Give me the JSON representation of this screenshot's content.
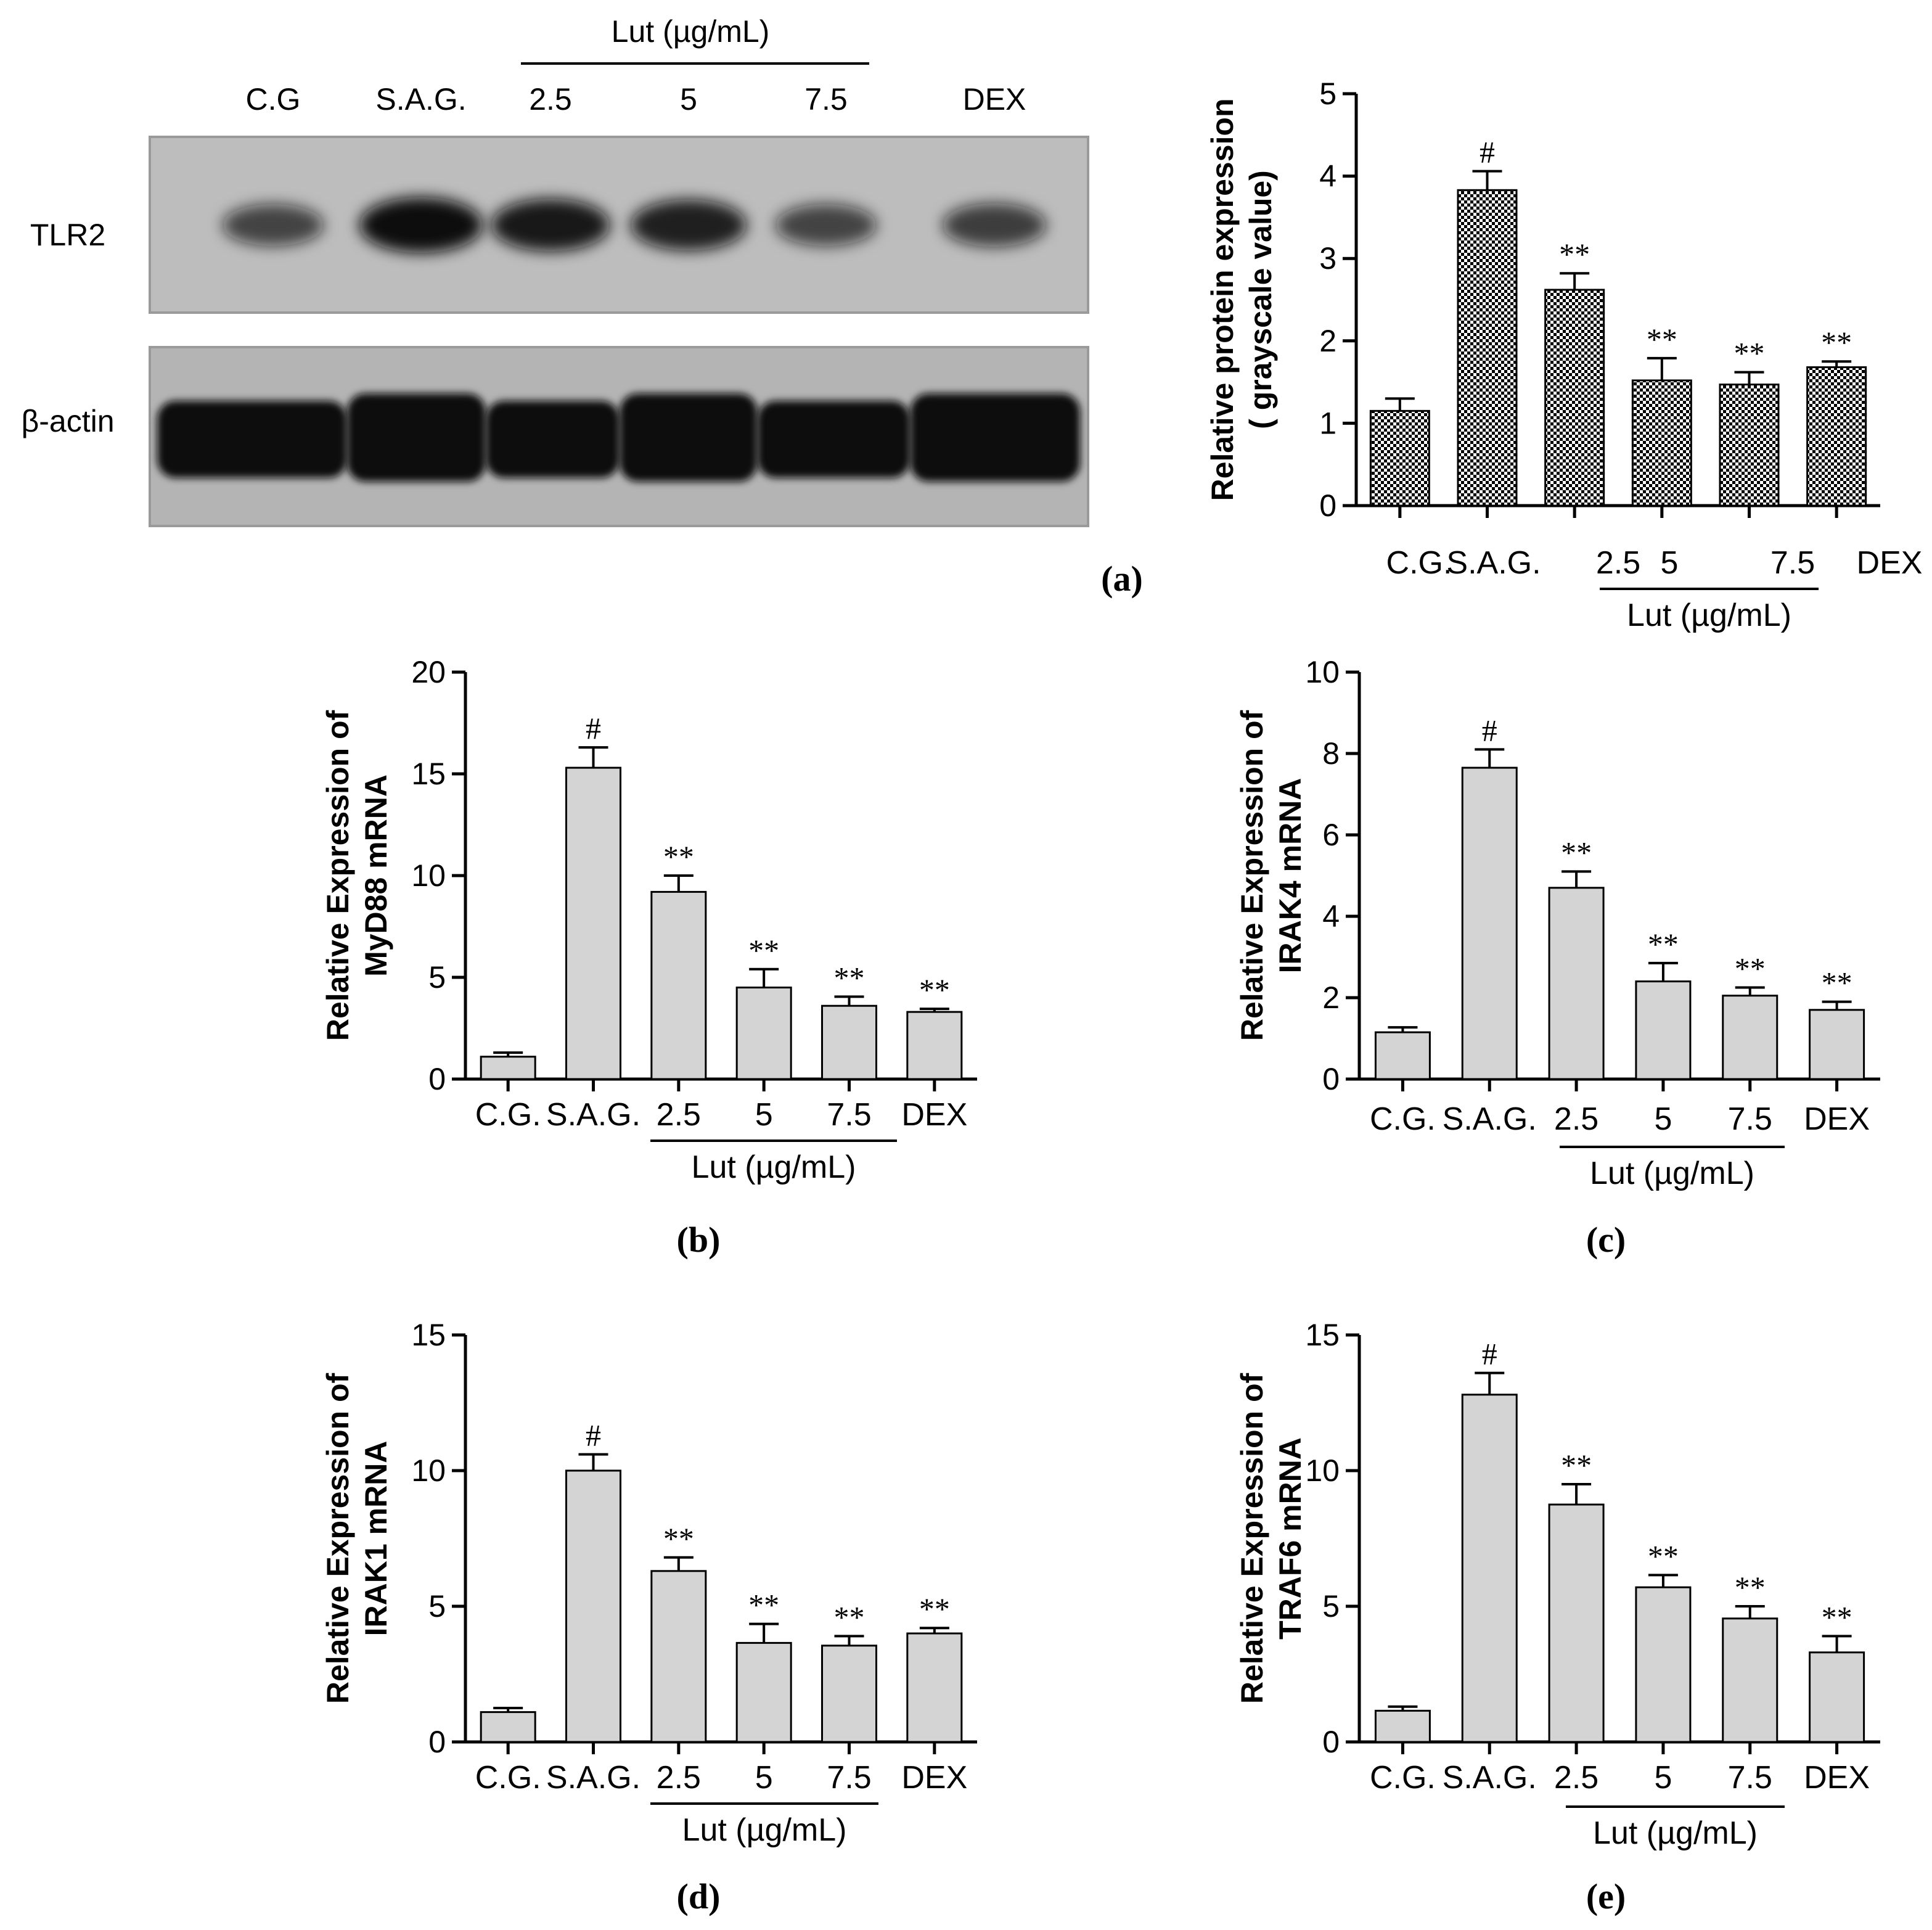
{
  "figure": {
    "blot": {
      "header": "Lut (µg/mL)",
      "lanes": [
        "C.G",
        "S.A.G.",
        "2.5",
        "5",
        "7.5",
        "DEX"
      ],
      "row_labels": [
        "TLR2",
        "β-actin"
      ],
      "band_intensity": {
        "TLR2": [
          0.55,
          1.0,
          0.9,
          0.85,
          0.55,
          0.6
        ],
        "beta_actin": [
          1.0,
          1.0,
          1.0,
          1.0,
          1.0,
          1.0
        ]
      }
    },
    "colors": {
      "bar_fill": "#d4d4d4",
      "bar_stroke": "#000000",
      "blot_bg": "#b8b8b8",
      "band": "#111111"
    }
  },
  "chart_data": [
    {
      "panel": "(a)",
      "type": "bar",
      "fill_pattern": "checkerboard",
      "categories": [
        "C.G.",
        "S.A.G.",
        "2.5",
        "5",
        "7.5",
        "DEX"
      ],
      "group_label": "Lut (µg/mL)",
      "values": [
        1.15,
        3.83,
        2.62,
        1.52,
        1.47,
        1.68
      ],
      "errors": [
        0.15,
        0.23,
        0.2,
        0.27,
        0.15,
        0.07
      ],
      "significance": [
        "",
        "#",
        "**",
        "**",
        "**",
        "**"
      ],
      "ylabel": "Relative protein expression ( grayscale value)",
      "ylim": [
        0,
        5
      ],
      "yticks": [
        0,
        1,
        2,
        3,
        4,
        5
      ]
    },
    {
      "panel": "(b)",
      "type": "bar",
      "categories": [
        "C.G.",
        "S.A.G.",
        "2.5",
        "5",
        "7.5",
        "DEX"
      ],
      "group_label": "Lut (µg/mL)",
      "values": [
        1.1,
        15.3,
        9.2,
        4.5,
        3.6,
        3.3
      ],
      "errors": [
        0.2,
        1.0,
        0.8,
        0.9,
        0.45,
        0.15
      ],
      "significance": [
        "",
        "#",
        "**",
        "**",
        "**",
        "**"
      ],
      "ylabel": "Relative Expression of MyD88 mRNA",
      "ylim": [
        0,
        20
      ],
      "yticks": [
        0,
        5,
        10,
        15,
        20
      ]
    },
    {
      "panel": "(c)",
      "type": "bar",
      "categories": [
        "C.G.",
        "S.A.G.",
        "2.5",
        "5",
        "7.5",
        "DEX"
      ],
      "group_label": "Lut (µg/mL)",
      "values": [
        1.15,
        7.65,
        4.7,
        2.4,
        2.05,
        1.7
      ],
      "errors": [
        0.12,
        0.45,
        0.4,
        0.45,
        0.2,
        0.2
      ],
      "significance": [
        "",
        "#",
        "**",
        "**",
        "**",
        "**"
      ],
      "ylabel": "Relative Expression of IRAK4 mRNA",
      "ylim": [
        0,
        10
      ],
      "yticks": [
        0,
        2,
        4,
        6,
        8,
        10
      ]
    },
    {
      "panel": "(d)",
      "type": "bar",
      "categories": [
        "C.G.",
        "S.A.G.",
        "2.5",
        "5",
        "7.5",
        "DEX"
      ],
      "group_label": "Lut (µg/mL)",
      "values": [
        1.1,
        10.0,
        6.3,
        3.65,
        3.55,
        4.0
      ],
      "errors": [
        0.15,
        0.6,
        0.5,
        0.7,
        0.35,
        0.2
      ],
      "significance": [
        "",
        "#",
        "**",
        "**",
        "**",
        "**"
      ],
      "ylabel": "Relative Expression of IRAK1 mRNA",
      "ylim": [
        0,
        15
      ],
      "yticks": [
        0,
        5,
        10,
        15
      ]
    },
    {
      "panel": "(e)",
      "type": "bar",
      "categories": [
        "C.G.",
        "S.A.G.",
        "2.5",
        "5",
        "7.5",
        "DEX"
      ],
      "group_label": "Lut (µg/mL)",
      "values": [
        1.15,
        12.8,
        8.75,
        5.7,
        4.55,
        3.3
      ],
      "errors": [
        0.15,
        0.8,
        0.75,
        0.45,
        0.45,
        0.6
      ],
      "significance": [
        "",
        "#",
        "**",
        "**",
        "**",
        "**"
      ],
      "ylabel": "Relative Expression of TRAF6 mRNA",
      "ylim": [
        0,
        15
      ],
      "yticks": [
        0,
        5,
        10,
        15
      ]
    }
  ]
}
